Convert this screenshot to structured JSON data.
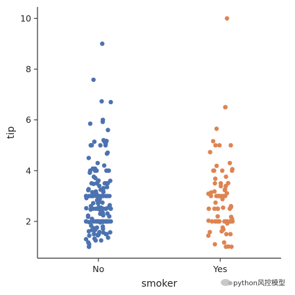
{
  "chart_data": {
    "type": "scatter",
    "subtype": "strip",
    "xlabel": "smoker",
    "ylabel": "tip",
    "categories": [
      "No",
      "Yes"
    ],
    "ylim": [
      0.55,
      10.45
    ],
    "yticks": [
      2,
      4,
      6,
      8,
      10
    ],
    "grid": false,
    "colors": {
      "No": "#4c72b0",
      "Yes": "#dd8452"
    },
    "series": [
      {
        "category": "No",
        "values": [
          9.0,
          7.58,
          6.73,
          6.7,
          6.0,
          5.92,
          5.85,
          5.6,
          5.2,
          5.17,
          5.15,
          5.14,
          5.07,
          5.0,
          5.0,
          5.0,
          5.0,
          5.0,
          4.71,
          4.67,
          4.5,
          4.3,
          4.2,
          4.08,
          4.08,
          4.0,
          4.0,
          4.0,
          4.0,
          4.0,
          4.0,
          4.0,
          3.92,
          3.76,
          3.71,
          3.61,
          3.6,
          3.55,
          3.5,
          3.5,
          3.5,
          3.5,
          3.5,
          3.48,
          3.4,
          3.35,
          3.31,
          3.27,
          3.25,
          3.23,
          3.21,
          3.18,
          3.16,
          3.15,
          3.12,
          3.11,
          3.1,
          3.0,
          3.0,
          3.0,
          3.0,
          3.0,
          3.0,
          3.0,
          3.0,
          3.0,
          3.0,
          3.0,
          3.0,
          3.0,
          3.0,
          3.0,
          3.0,
          3.0,
          2.92,
          2.88,
          2.83,
          2.75,
          2.74,
          2.72,
          2.71,
          2.64,
          2.6,
          2.56,
          2.55,
          2.54,
          2.52,
          2.5,
          2.5,
          2.5,
          2.5,
          2.5,
          2.5,
          2.5,
          2.5,
          2.5,
          2.47,
          2.45,
          2.34,
          2.31,
          2.3,
          2.24,
          2.23,
          2.2,
          2.18,
          2.1,
          2.0,
          2.0,
          2.0,
          2.0,
          2.0,
          2.0,
          2.0,
          2.0,
          2.0,
          2.0,
          2.0,
          2.0,
          2.0,
          2.0,
          2.0,
          2.0,
          2.0,
          2.0,
          2.0,
          2.0,
          2.0,
          2.0,
          2.0,
          2.0,
          2.0,
          2.0,
          1.98,
          1.97,
          1.96,
          1.83,
          1.8,
          1.76,
          1.73,
          1.71,
          1.68,
          1.67,
          1.66,
          1.64,
          1.61,
          1.58,
          1.57,
          1.56,
          1.5,
          1.5,
          1.5,
          1.5,
          1.48,
          1.45,
          1.44,
          1.36,
          1.32,
          1.3,
          1.25,
          1.25,
          1.17,
          1.1,
          1.0,
          1.0
        ]
      },
      {
        "category": "Yes",
        "values": [
          10.0,
          6.5,
          6.5,
          5.65,
          5.16,
          5.0,
          5.0,
          5.0,
          4.73,
          4.3,
          4.19,
          4.06,
          4.0,
          4.0,
          4.0,
          4.0,
          4.0,
          3.76,
          3.68,
          3.51,
          3.5,
          3.5,
          3.4,
          3.39,
          3.27,
          3.23,
          3.18,
          3.14,
          3.11,
          3.09,
          3.0,
          3.0,
          3.0,
          3.0,
          3.0,
          3.0,
          3.0,
          3.0,
          3.0,
          3.0,
          2.88,
          2.74,
          2.6,
          2.56,
          2.54,
          2.5,
          2.5,
          2.5,
          2.5,
          2.5,
          2.2,
          2.18,
          2.09,
          2.03,
          2.0,
          2.0,
          2.0,
          2.0,
          2.0,
          2.0,
          2.0,
          2.0,
          2.0,
          2.0,
          2.0,
          2.0,
          2.0,
          1.92,
          1.76,
          1.68,
          1.61,
          1.58,
          1.5,
          1.5,
          1.44,
          1.17,
          1.1,
          1.01,
          1.0,
          1.0
        ]
      }
    ]
  },
  "watermark": {
    "text": "python风控模型",
    "icon": "wechat-icon"
  }
}
